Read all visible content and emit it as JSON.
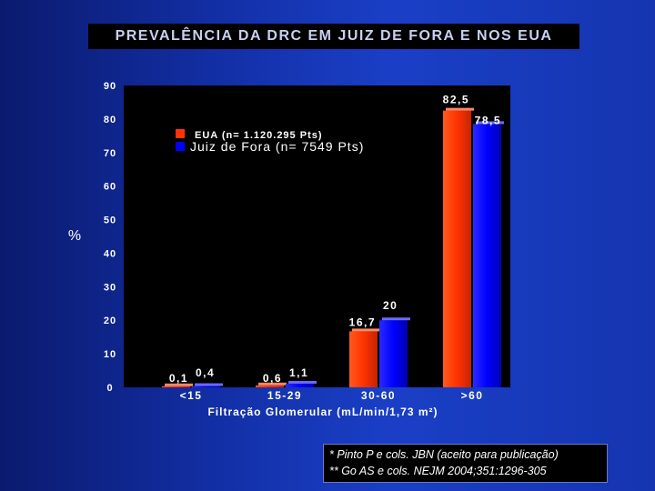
{
  "slide": {
    "title": "PREVALÊNCIA DA DRC EM JUIZ DE FORA E NOS EUA",
    "footnotes": [
      "* Pinto P e cols. JBN (aceito para publicação)",
      "** Go AS e cols. NEJM 2004;351:1296-305"
    ]
  },
  "chart_data": {
    "type": "bar",
    "title": "",
    "ylabel": "%",
    "xlabel": "Filtração Glomerular (mL/min/1,73 m²)",
    "ylim": [
      0,
      90
    ],
    "yticks": [
      "0",
      "10",
      "20",
      "30",
      "40",
      "50",
      "60",
      "70",
      "80",
      "90"
    ],
    "categories": [
      "<15",
      "15-29",
      "30-60",
      ">60"
    ],
    "series": [
      {
        "name": "EUA (n= 1.120.295 Pts)",
        "color": "#ff3300",
        "values": [
          0.1,
          0.6,
          16.7,
          82.5
        ],
        "labels": [
          "0,1",
          "0,6",
          "16,7",
          "82,5"
        ]
      },
      {
        "name": "Juiz de Fora (n= 7549 Pts)",
        "color": "#0000ff",
        "values": [
          0.4,
          1.1,
          20,
          78.5
        ],
        "labels": [
          "0,4",
          "1,1",
          "20",
          "78,5"
        ]
      }
    ],
    "legend": "upper-left",
    "plot_background": "#000000",
    "grid": false
  }
}
